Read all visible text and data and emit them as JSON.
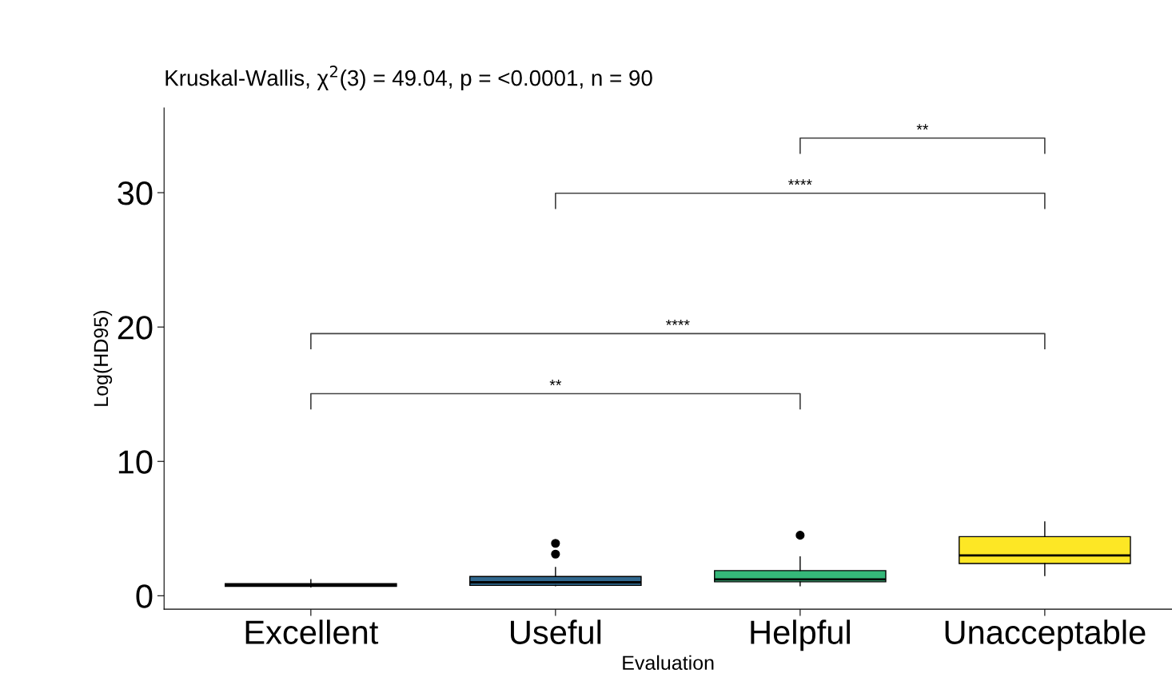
{
  "chart_data": {
    "type": "box",
    "title": "Kruskal-Wallis, χ$^{2}$(3) = 49.04, p = <0.0001, n = 90",
    "xlabel": "Evaluation",
    "ylabel": "Log(HD95)",
    "categories": [
      "Excellent",
      "Useful",
      "Helpful",
      "Unacceptable"
    ],
    "colors": [
      "#440154",
      "#31688e",
      "#35b779",
      "#fde725"
    ],
    "boxes": [
      {
        "low": 0.65,
        "q1": 0.7,
        "median": 0.8,
        "q3": 0.9,
        "high": 1.2
      },
      {
        "low": 0.75,
        "q1": 0.77,
        "median": 1.0,
        "q3": 1.43,
        "high": 2.1,
        "outliers": [
          3.1,
          3.9
        ]
      },
      {
        "low": 0.75,
        "q1": 1.04,
        "median": 1.22,
        "q3": 1.87,
        "high": 2.9,
        "outliers": [
          4.5
        ]
      },
      {
        "low": 1.5,
        "q1": 2.4,
        "median": 3.0,
        "q3": 4.4,
        "high": 5.5
      }
    ],
    "ylim": [
      -1,
      36.3
    ],
    "yticks": [
      0,
      10,
      20,
      30
    ],
    "grid": false,
    "legend": false,
    "annotations": [
      "**",
      "****",
      "****",
      "**"
    ]
  }
}
